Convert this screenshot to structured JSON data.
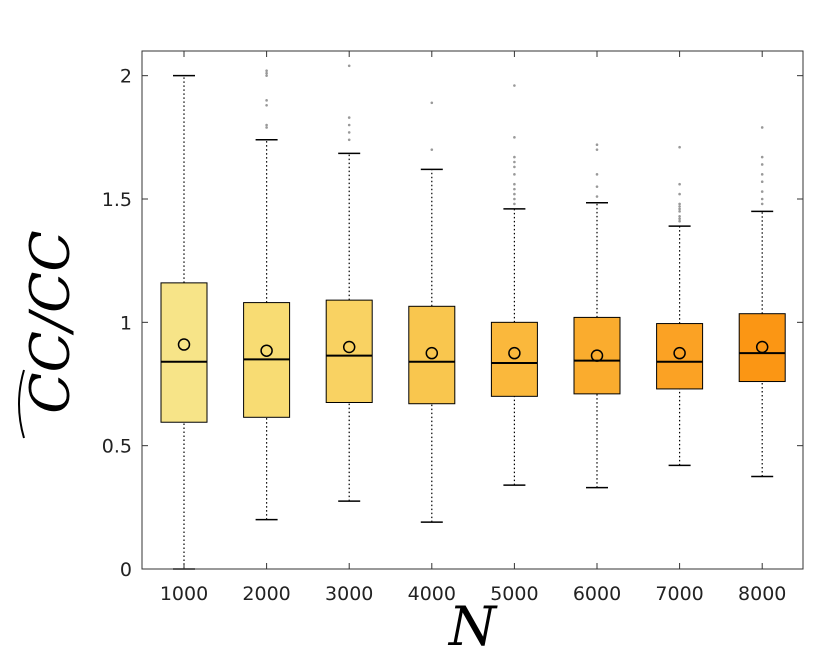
{
  "chart_data": {
    "type": "boxplot",
    "title": "",
    "xlabel": "N",
    "ylabel": "CC/CC",
    "ylabel_hat_over_numerator": true,
    "ylim": [
      0,
      2.1
    ],
    "yticks": [
      0,
      0.5,
      1,
      1.5,
      2
    ],
    "ytick_labels": [
      "0",
      "0.5",
      "1",
      "1.5",
      "2"
    ],
    "categories": [
      "1000",
      "2000",
      "3000",
      "4000",
      "5000",
      "6000",
      "7000",
      "8000"
    ],
    "grid": false,
    "legend": "none",
    "boxes": [
      {
        "category": "1000",
        "whisker_low": 0.0,
        "q1": 0.595,
        "median": 0.84,
        "q3": 1.16,
        "whisker_high": 2.0,
        "mean": 0.91,
        "color": "#f7e488",
        "outliers": []
      },
      {
        "category": "2000",
        "whisker_low": 0.2,
        "q1": 0.615,
        "median": 0.85,
        "q3": 1.08,
        "whisker_high": 1.74,
        "mean": 0.885,
        "color": "#f8dc73",
        "outliers": [
          2.0,
          2.01,
          2.02,
          1.9,
          1.88,
          1.8,
          1.79
        ]
      },
      {
        "category": "3000",
        "whisker_low": 0.275,
        "q1": 0.675,
        "median": 0.865,
        "q3": 1.09,
        "whisker_high": 1.685,
        "mean": 0.9,
        "color": "#f9d262",
        "outliers": [
          2.04,
          1.83,
          1.8,
          1.77,
          1.74
        ]
      },
      {
        "category": "4000",
        "whisker_low": 0.19,
        "q1": 0.67,
        "median": 0.84,
        "q3": 1.065,
        "whisker_high": 1.62,
        "mean": 0.875,
        "color": "#f9c64e",
        "outliers": [
          1.89,
          1.7
        ]
      },
      {
        "category": "5000",
        "whisker_low": 0.34,
        "q1": 0.7,
        "median": 0.835,
        "q3": 1.0,
        "whisker_high": 1.46,
        "mean": 0.875,
        "color": "#fab83c",
        "outliers": [
          1.96,
          1.75,
          1.67,
          1.65,
          1.63,
          1.6,
          1.56,
          1.54,
          1.52,
          1.5,
          1.48
        ]
      },
      {
        "category": "6000",
        "whisker_low": 0.33,
        "q1": 0.71,
        "median": 0.845,
        "q3": 1.02,
        "whisker_high": 1.485,
        "mean": 0.865,
        "color": "#faac2e",
        "outliers": [
          1.72,
          1.7,
          1.6,
          1.55,
          1.51
        ]
      },
      {
        "category": "7000",
        "whisker_low": 0.42,
        "q1": 0.73,
        "median": 0.84,
        "q3": 0.995,
        "whisker_high": 1.39,
        "mean": 0.875,
        "color": "#fba224",
        "outliers": [
          1.71,
          1.56,
          1.52,
          1.48,
          1.47,
          1.46,
          1.45,
          1.43,
          1.42,
          1.41
        ]
      },
      {
        "category": "8000",
        "whisker_low": 0.375,
        "q1": 0.76,
        "median": 0.875,
        "q3": 1.035,
        "whisker_high": 1.45,
        "mean": 0.9,
        "color": "#fb9614",
        "outliers": [
          1.79,
          1.67,
          1.64,
          1.6,
          1.57,
          1.53,
          1.5,
          1.48
        ]
      }
    ]
  }
}
